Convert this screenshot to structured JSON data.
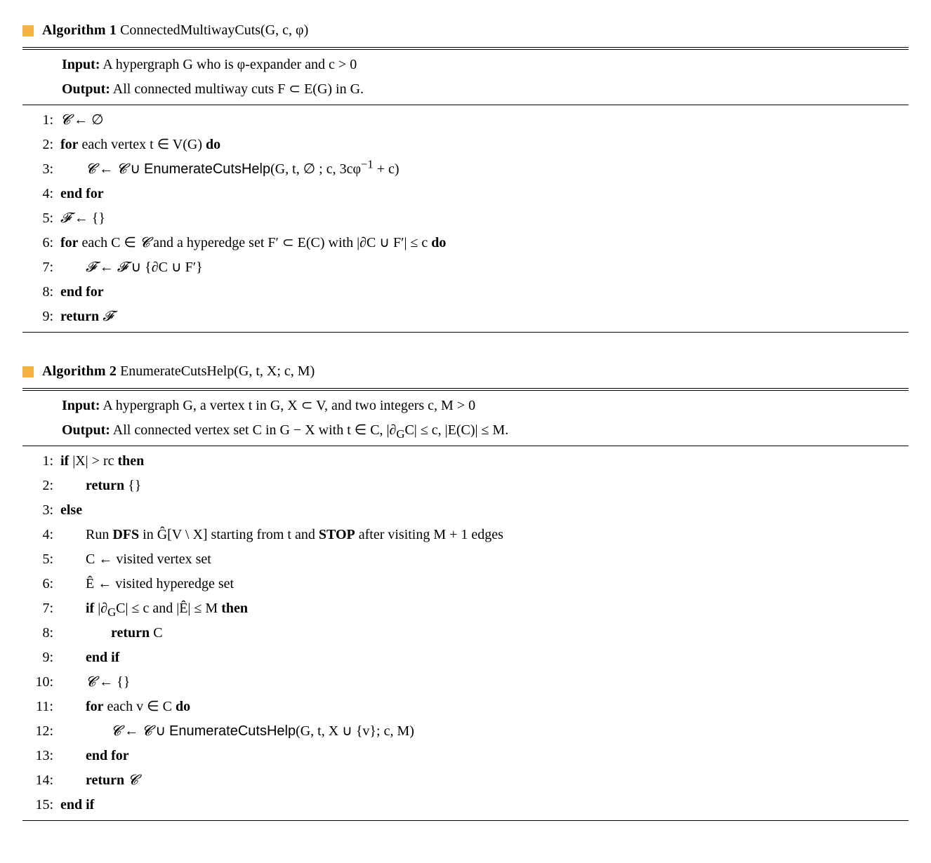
{
  "colors": {
    "square": "#f5b342",
    "text": "#000000",
    "bg": "#ffffff"
  },
  "typography": {
    "body_fontsize_pt": 15,
    "lineheight": 1.55
  },
  "alg1": {
    "title_prefix": "Algorithm 1",
    "signature": " ConnectedMultiwayCuts(G, c, φ)",
    "input_label": "Input:",
    "input_text": " A hypergraph G who is φ-expander and c > 0",
    "output_label": "Output:",
    "output_text": " All connected multiway cuts F ⊂ E(G) in G.",
    "lines": {
      "n1": "1:",
      "l1_a": "𝓒",
      "l1_b": " ← ∅",
      "n2": "2:",
      "l2_a": "for",
      "l2_b": " each vertex t ∈ V(G) ",
      "l2_c": "do",
      "n3": "3:",
      "l3_a": "𝓒",
      "l3_b": " ← ",
      "l3_c": "𝓒",
      "l3_d": " ∪ ",
      "l3_e": "EnumerateCutsHelp",
      "l3_f": "(G, t, ∅ ; c, 3cφ",
      "l3_g": "−1",
      "l3_h": " + c)",
      "n4": "4:",
      "l4_a": "end for",
      "n5": "5:",
      "l5_a": "𝓕",
      "l5_b": " ← {}",
      "n6": "6:",
      "l6_a": "for",
      "l6_b": " each C ∈ ",
      "l6_c": "𝓒",
      "l6_d": " and a hyperedge set F′ ⊂ E(C) with |∂C ∪ F′| ≤ c ",
      "l6_e": "do",
      "n7": "7:",
      "l7_a": "𝓕",
      "l7_b": " ← ",
      "l7_c": "𝓕",
      "l7_d": " ∪ {∂C ∪ F′}",
      "n8": "8:",
      "l8_a": "end for",
      "n9": "9:",
      "l9_a": "return ",
      "l9_b": "𝓕"
    }
  },
  "alg2": {
    "title_prefix": "Algorithm 2",
    "signature": " EnumerateCutsHelp(G, t, X; c, M)",
    "input_label": "Input:",
    "input_text": " A hypergraph G, a vertex t in G, X ⊂ V, and two integers c, M > 0",
    "output_label": "Output:",
    "output_text_a": " All connected vertex set C in G − X with t ∈ C, |∂",
    "output_text_sub": "G",
    "output_text_b": "C| ≤ c, |E(C)| ≤ M.",
    "lines": {
      "n1": "1:",
      "l1_a": "if",
      "l1_b": " |X| > rc ",
      "l1_c": "then",
      "n2": "2:",
      "l2_a": "return",
      "l2_b": " {}",
      "n3": "3:",
      "l3_a": "else",
      "n4": "4:",
      "l4_a": "Run ",
      "l4_b": "DFS",
      "l4_c": " in Ĝ[V \\ X] starting from t and ",
      "l4_d": "STOP",
      "l4_e": " after visiting M + 1 edges",
      "n5": "5:",
      "l5_a": "C ← visited vertex set",
      "n6": "6:",
      "l6_a": "Ê ← visited hyperedge set",
      "n7": "7:",
      "l7_a": "if",
      "l7_b": " |∂",
      "l7_sub": "G",
      "l7_c": "C| ≤ c and |Ê| ≤ M ",
      "l7_d": "then",
      "n8": "8:",
      "l8_a": "return",
      "l8_b": " C",
      "n9": "9:",
      "l9_a": "end if",
      "n10": "10:",
      "l10_a": "𝓒",
      "l10_b": " ← {}",
      "n11": "11:",
      "l11_a": "for",
      "l11_b": " each v ∈ C ",
      "l11_c": "do",
      "n12": "12:",
      "l12_a": "𝓒",
      "l12_b": " ← ",
      "l12_c": "𝓒",
      "l12_d": " ∪ ",
      "l12_e": "EnumerateCutsHelp",
      "l12_f": "(G, t, X ∪ {v}; c, M)",
      "n13": "13:",
      "l13_a": "end for",
      "n14": "14:",
      "l14_a": "return ",
      "l14_b": "𝓒",
      "n15": "15:",
      "l15_a": "end if"
    }
  }
}
